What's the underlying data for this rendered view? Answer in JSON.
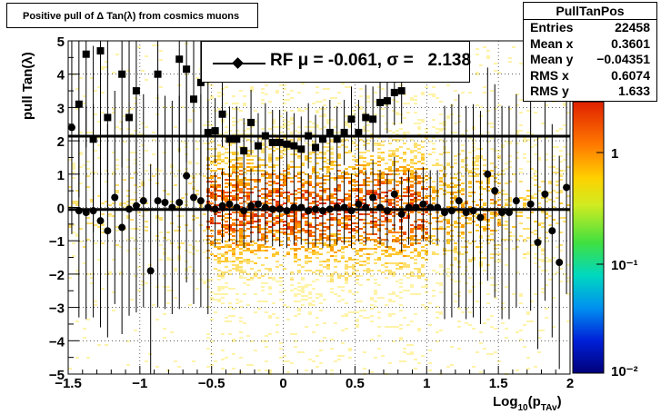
{
  "title": "Positive pull of Δ Tan(λ) from cosmics muons",
  "stats": {
    "name": "PullTanPos",
    "rows": [
      {
        "label": "Entries",
        "value": "22458"
      },
      {
        "label": "Mean x",
        "value": "0.3601"
      },
      {
        "label": "Mean y",
        "value": "−0.04351"
      },
      {
        "label": "RMS x",
        "value": "0.6074"
      },
      {
        "label": "RMS y",
        "value": "1.633"
      }
    ]
  },
  "legend": {
    "text": "RF μ = -0.061, σ =   2.138"
  },
  "colors": {
    "profile_marker": "#000000",
    "fit_line": "#000000"
  },
  "chart_data": {
    "type": "scatter",
    "xlabel": "Log10(pTAv)",
    "ylabel": "pull Tan(λ)",
    "xlim": [
      -1.5,
      2
    ],
    "ylim": [
      -5,
      5
    ],
    "x_ticks": [
      "−1.5",
      "−1",
      "−0.5",
      "0",
      "0.5",
      "1",
      "1.5",
      "2"
    ],
    "y_ticks": [
      "−5",
      "−4",
      "−3",
      "−2",
      "−1",
      "0",
      "1",
      "2",
      "3",
      "4",
      "5"
    ],
    "colorbar": {
      "scale": "log",
      "ticks": [
        "10⁻²",
        "10⁻¹",
        "1"
      ]
    },
    "grid": true,
    "mean_line_y": -0.061,
    "sigma_line_y": 2.138,
    "series": [
      {
        "marker": "circle",
        "x": [
          -1.475,
          -1.425,
          -1.375,
          -1.325,
          -1.275,
          -1.225,
          -1.175,
          -1.125,
          -1.075,
          -1.025,
          -0.975,
          -0.925,
          -0.875,
          -0.825,
          -0.775,
          -0.725,
          -0.675,
          -0.625,
          -0.575,
          -0.525,
          -0.475,
          -0.425,
          -0.375,
          -0.325,
          -0.275,
          -0.225,
          -0.175,
          -0.125,
          -0.075,
          -0.025,
          0.025,
          0.075,
          0.125,
          0.175,
          0.225,
          0.275,
          0.325,
          0.375,
          0.425,
          0.475,
          0.525,
          0.575,
          0.625,
          0.675,
          0.725,
          0.775,
          0.825,
          0.875,
          0.925,
          0.975,
          1.025,
          1.075,
          1.125,
          1.175,
          1.225,
          1.275,
          1.325,
          1.375,
          1.425,
          1.475,
          1.525,
          1.575,
          1.625,
          1.675,
          1.725,
          1.775,
          1.825,
          1.875,
          1.925,
          1.975
        ],
        "y": [
          2.4,
          -0.1,
          -0.15,
          -0.1,
          -0.4,
          -0.7,
          0.3,
          -0.6,
          -0.05,
          0.05,
          0.2,
          -1.9,
          0.2,
          0.15,
          0.0,
          0.15,
          0.95,
          0.3,
          0.2,
          0.0,
          -0.05,
          0.05,
          0.1,
          0.0,
          -0.1,
          0.05,
          0.1,
          0.0,
          -0.05,
          -0.05,
          -0.1,
          0.0,
          0.0,
          -0.1,
          -0.05,
          -0.1,
          -0.05,
          0.0,
          0.0,
          -0.1,
          0.1,
          0.0,
          0.3,
          0.0,
          -0.1,
          0.4,
          -0.2,
          0.0,
          0.0,
          0.1,
          0.0,
          0.0,
          -0.15,
          -0.1,
          0.2,
          -0.15,
          -0.1,
          -0.3,
          1.0,
          0.5,
          -0.15,
          -0.15,
          0.2,
          null,
          0.1,
          -1.05,
          0.4,
          -0.7,
          -1.65,
          0.6
        ]
      },
      {
        "marker": "square",
        "x": [
          -1.475,
          -1.425,
          -1.375,
          -1.325,
          -1.275,
          -1.225,
          -1.175,
          -1.125,
          -1.075,
          -1.025,
          -0.975,
          -0.925,
          -0.875,
          -0.825,
          -0.775,
          -0.725,
          -0.675,
          -0.625,
          -0.575,
          -0.525,
          -0.475,
          -0.425,
          -0.375,
          -0.325,
          -0.275,
          -0.225,
          -0.175,
          -0.125,
          -0.075,
          -0.025,
          0.025,
          0.075,
          0.125,
          0.175,
          0.225,
          0.275,
          0.325,
          0.375,
          0.425,
          0.475,
          0.525,
          0.575,
          0.625,
          0.675,
          0.725,
          0.775,
          0.825,
          0.875,
          0.925,
          0.975,
          1.025,
          1.075
        ],
        "y": [
          null,
          3.1,
          4.6,
          2.05,
          4.7,
          2.7,
          null,
          4.0,
          2.7,
          3.5,
          null,
          null,
          4.0,
          null,
          null,
          4.45,
          4.15,
          3.25,
          3.75,
          2.25,
          2.3,
          2.8,
          2.05,
          2.05,
          1.7,
          2.55,
          1.85,
          2.15,
          1.95,
          1.95,
          1.9,
          1.85,
          1.75,
          2.15,
          1.8,
          2.05,
          2.25,
          2.05,
          2.25,
          2.65,
          2.25,
          2.7,
          2.65,
          3.15,
          3.2,
          3.45,
          3.5,
          null,
          null,
          null,
          null,
          null
        ]
      }
    ]
  }
}
